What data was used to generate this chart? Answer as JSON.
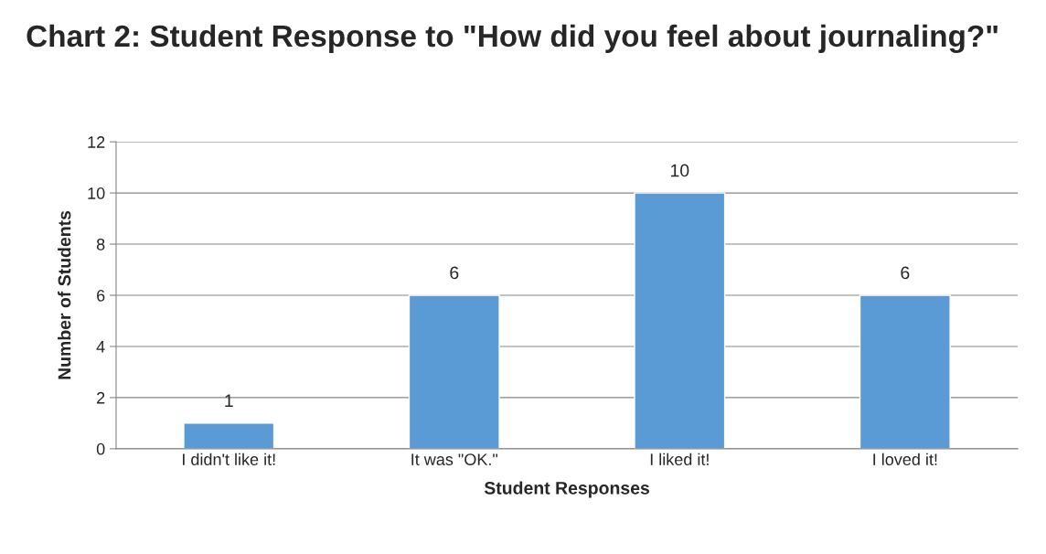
{
  "chart_data": {
    "type": "bar",
    "title": "Chart 2: Student Response to \"How did you feel about journaling?\"",
    "xlabel": "Student Responses",
    "ylabel": "Number of Students",
    "categories": [
      "I didn't like it!",
      "It was \"OK.\"",
      "I liked it!",
      "I loved it!"
    ],
    "values": [
      1,
      6,
      10,
      6
    ],
    "color": "#5b9bd5",
    "ylim": [
      0,
      12
    ],
    "yticks": [
      0,
      2,
      4,
      6,
      8,
      10,
      12
    ],
    "grid": "y",
    "data_labels": true
  }
}
